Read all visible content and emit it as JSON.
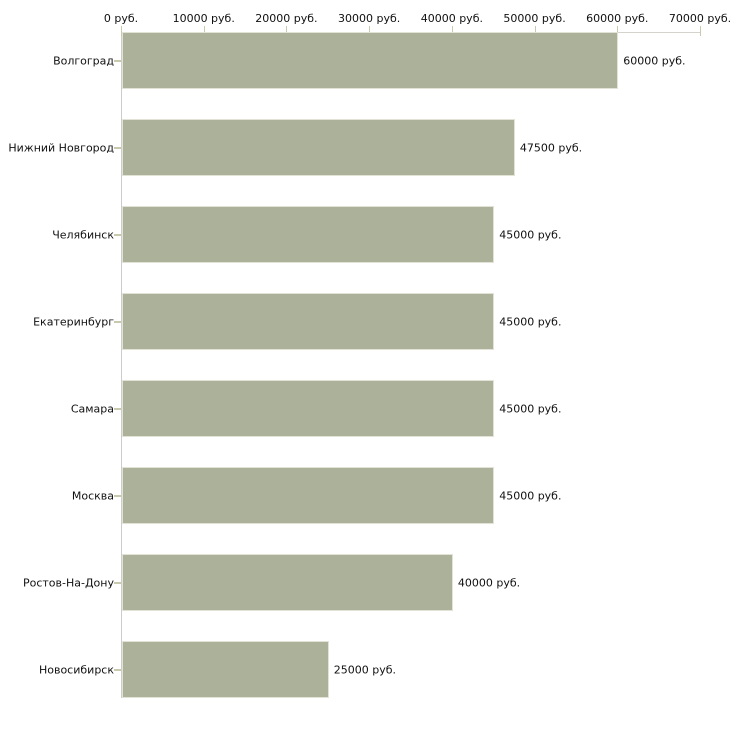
{
  "chart_data": {
    "type": "bar",
    "orientation": "horizontal",
    "title": "",
    "xlabel": "",
    "ylabel": "",
    "unit": "руб.",
    "grid": false,
    "xlim": [
      0,
      70000
    ],
    "categories": [
      "Волгоград",
      "Нижний Новгород",
      "Челябинск",
      "Екатеринбург",
      "Самара",
      "Москва",
      "Ростов-На-Дону",
      "Новосибирск"
    ],
    "values": [
      60000,
      47500,
      45000,
      45000,
      45000,
      45000,
      40000,
      25000
    ],
    "value_labels": [
      "60000 руб.",
      "47500 руб.",
      "45000 руб.",
      "45000 руб.",
      "45000 руб.",
      "45000 руб.",
      "40000 руб.",
      "25000 руб."
    ],
    "xticks": [
      {
        "value": 0,
        "label": "0 руб."
      },
      {
        "value": 10000,
        "label": "10000 руб."
      },
      {
        "value": 20000,
        "label": "20000 руб."
      },
      {
        "value": 30000,
        "label": "30000 руб."
      },
      {
        "value": 40000,
        "label": "40000 руб."
      },
      {
        "value": 50000,
        "label": "50000 руб."
      },
      {
        "value": 60000,
        "label": "60000 руб."
      },
      {
        "value": 70000,
        "label": "70000 руб."
      }
    ]
  },
  "colors": {
    "background": "#ffffff",
    "bar_fill": "#acb199",
    "bar_border": "#e2e2d6",
    "axis_line": "#d4d4cc",
    "yaxis_line": "#cccccc",
    "tick_mark": "#c9c9b0",
    "text": "#111111"
  }
}
